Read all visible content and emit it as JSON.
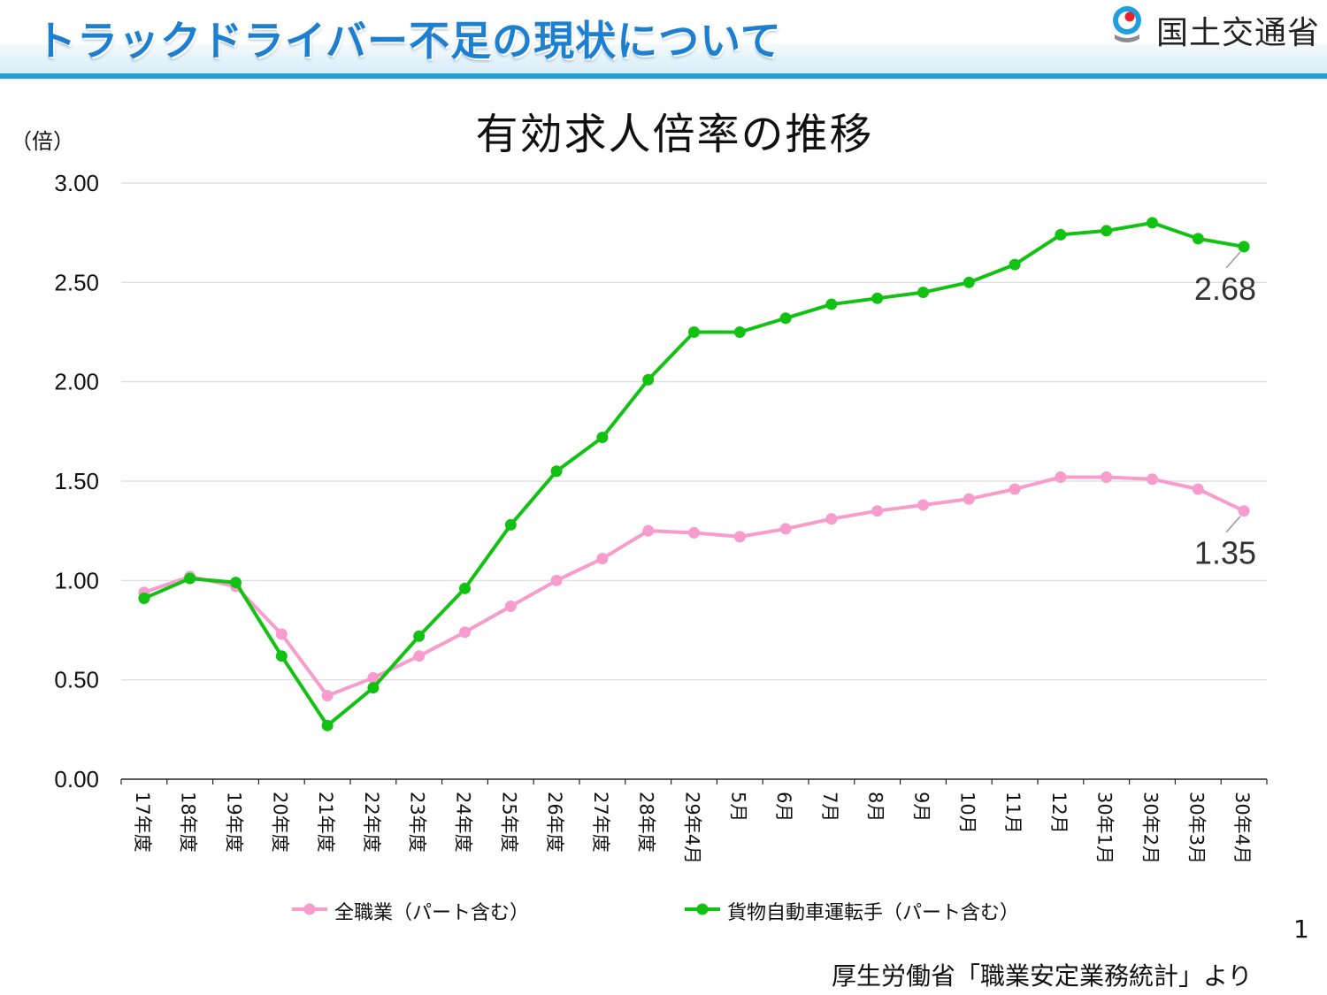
{
  "header": {
    "title": "トラックドライバー不足の現状について",
    "ministry_name": "国土交通省",
    "accent_color": "#19a3d8"
  },
  "page_number": "1",
  "source": "厚生労働省「職業安定業務統計」より",
  "chart_data": {
    "type": "line",
    "title": "有効求人倍率の推移",
    "ylabel": "（倍）",
    "xlabel": "",
    "ylim": [
      0,
      3
    ],
    "yticks": [
      "0.00",
      "0.50",
      "1.00",
      "1.50",
      "2.00",
      "2.50",
      "3.00"
    ],
    "grid": true,
    "legend_position": "bottom",
    "categories": [
      "17年度",
      "18年度",
      "19年度",
      "20年度",
      "21年度",
      "22年度",
      "23年度",
      "24年度",
      "25年度",
      "26年度",
      "27年度",
      "28年度",
      "29年4月",
      "5月",
      "6月",
      "7月",
      "8月",
      "9月",
      "10月",
      "11月",
      "12月",
      "30年1月",
      "30年2月",
      "30年3月",
      "30年4月"
    ],
    "series": [
      {
        "name": "全職業（パート含む）",
        "color": "#f79ccc",
        "values": [
          0.94,
          1.02,
          0.97,
          0.73,
          0.42,
          0.51,
          0.62,
          0.74,
          0.87,
          1.0,
          1.11,
          1.25,
          1.24,
          1.22,
          1.26,
          1.31,
          1.35,
          1.38,
          1.41,
          1.46,
          1.52,
          1.52,
          1.51,
          1.46,
          1.35
        ],
        "end_label": "1.35"
      },
      {
        "name": "貨物自動車運転手（パート含む）",
        "color": "#12c212",
        "values": [
          0.91,
          1.01,
          0.99,
          0.62,
          0.27,
          0.46,
          0.72,
          0.96,
          1.28,
          1.55,
          1.72,
          2.01,
          2.25,
          2.25,
          2.32,
          2.39,
          2.42,
          2.45,
          2.5,
          2.59,
          2.74,
          2.76,
          2.8,
          2.72,
          2.68
        ],
        "end_label": "2.68"
      }
    ]
  }
}
